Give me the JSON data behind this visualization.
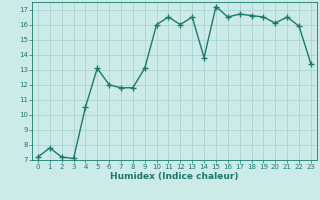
{
  "x": [
    0,
    1,
    2,
    3,
    4,
    5,
    6,
    7,
    8,
    9,
    10,
    11,
    12,
    13,
    14,
    15,
    16,
    17,
    18,
    19,
    20,
    21,
    22,
    23
  ],
  "y": [
    7.2,
    7.8,
    7.2,
    7.1,
    10.5,
    13.1,
    12.0,
    11.8,
    11.8,
    13.1,
    16.0,
    16.5,
    16.0,
    16.5,
    13.8,
    17.2,
    16.5,
    16.7,
    16.6,
    16.5,
    16.1,
    16.5,
    15.9,
    13.4
  ],
  "xlabel": "Humidex (Indice chaleur)",
  "ylabel": "",
  "xlim": [
    -0.5,
    23.5
  ],
  "ylim": [
    7,
    17.5
  ],
  "yticks": [
    7,
    8,
    9,
    10,
    11,
    12,
    13,
    14,
    15,
    16,
    17
  ],
  "xticks": [
    0,
    1,
    2,
    3,
    4,
    5,
    6,
    7,
    8,
    9,
    10,
    11,
    12,
    13,
    14,
    15,
    16,
    17,
    18,
    19,
    20,
    21,
    22,
    23
  ],
  "line_color": "#1a7a6e",
  "marker": "+",
  "bg_color": "#cceae7",
  "grid_color": "#aad4d0",
  "tick_color": "#1a7a6e",
  "label_color": "#1a7a6e",
  "line_width": 1.0,
  "marker_size": 4,
  "marker_edge_width": 1.0
}
